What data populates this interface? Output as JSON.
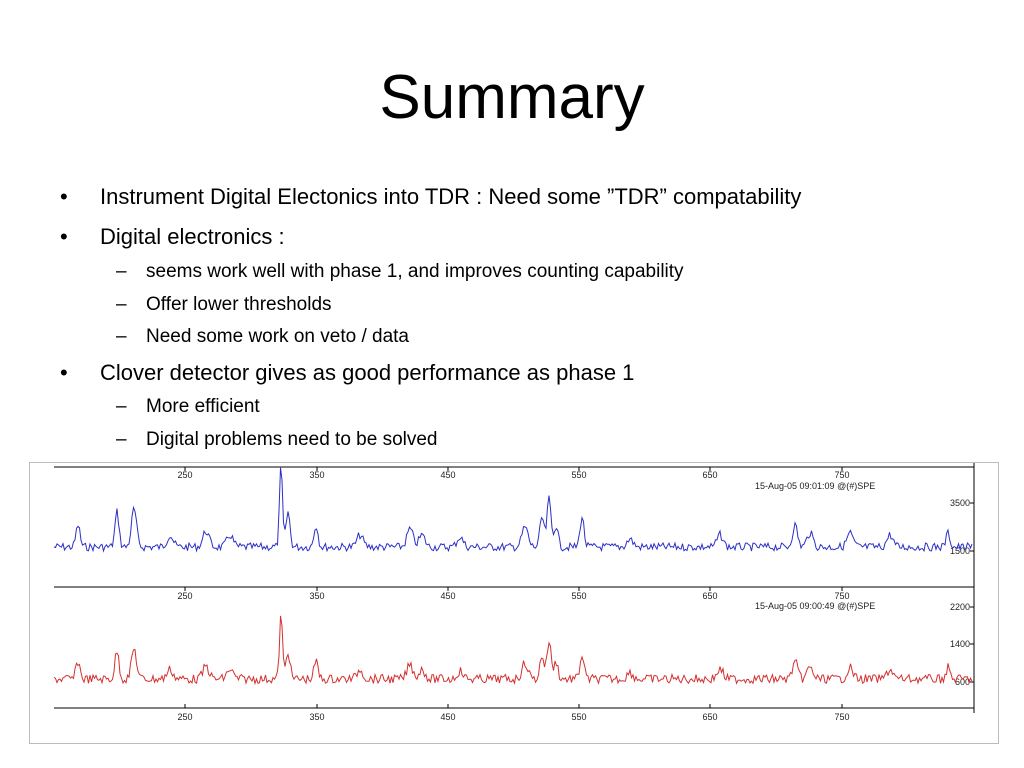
{
  "slide": {
    "title": "Summary",
    "bullets": [
      {
        "level": 1,
        "marker": "•",
        "text": "Instrument Digital Electonics into TDR : Need some ”TDR” compatability"
      },
      {
        "level": 1,
        "marker": "•",
        "text": "Digital electronics :"
      },
      {
        "level": 2,
        "marker": "–",
        "text": "seems work well with phase 1, and improves counting capability"
      },
      {
        "level": 2,
        "marker": "–",
        "text": "Offer lower thresholds"
      },
      {
        "level": 2,
        "marker": "–",
        "text": "Need some work on veto / data"
      },
      {
        "level": 1,
        "marker": "•",
        "text": "Clover detector gives as good performance as phase 1"
      },
      {
        "level": 2,
        "marker": "–",
        "text": "More efficient"
      },
      {
        "level": 2,
        "marker": "–",
        "text": "Digital problems need to be solved"
      }
    ]
  },
  "figure": {
    "top_panel": {
      "stamp": "15-Aug-05 09:01:09 @(#)SPE",
      "x_ticks": [
        "250",
        "350",
        "450",
        "550",
        "650",
        "750"
      ],
      "y_ticks": [
        "3500",
        "1500"
      ],
      "color": "#2b2fc7"
    },
    "bottom_panel": {
      "stamp": "15-Aug-05 09:00:49 @(#)SPE",
      "x_ticks_top": [
        "250",
        "350",
        "450",
        "550",
        "650",
        "750"
      ],
      "x_ticks_bottom": [
        "250",
        "350",
        "450",
        "550",
        "650",
        "750"
      ],
      "y_ticks": [
        "2200",
        "1400",
        "600"
      ],
      "color": "#d43030"
    },
    "frame_color": "#000000"
  }
}
